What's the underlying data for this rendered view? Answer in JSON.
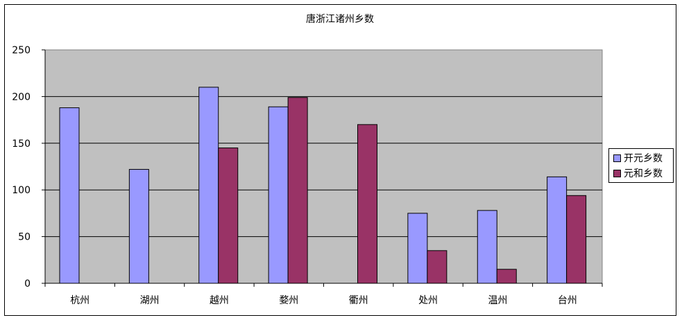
{
  "chart_data": {
    "type": "bar",
    "title": "唐浙江诸州乡数",
    "categories": [
      "杭州",
      "湖州",
      "越州",
      "婺州",
      "衢州",
      "处州",
      "温州",
      "台州"
    ],
    "series": [
      {
        "name": "开元乡数",
        "color": "#9999ff",
        "values": [
          188,
          122,
          210,
          189,
          null,
          75,
          78,
          114
        ]
      },
      {
        "name": "元和乡数",
        "color": "#993366",
        "values": [
          null,
          null,
          145,
          199,
          170,
          35,
          15,
          94
        ]
      }
    ],
    "ylim": [
      0,
      250
    ],
    "yticks": [
      0,
      50,
      100,
      150,
      200,
      250
    ],
    "grid": true,
    "plot_background": "#c0c0c0",
    "legend_position": "right"
  }
}
